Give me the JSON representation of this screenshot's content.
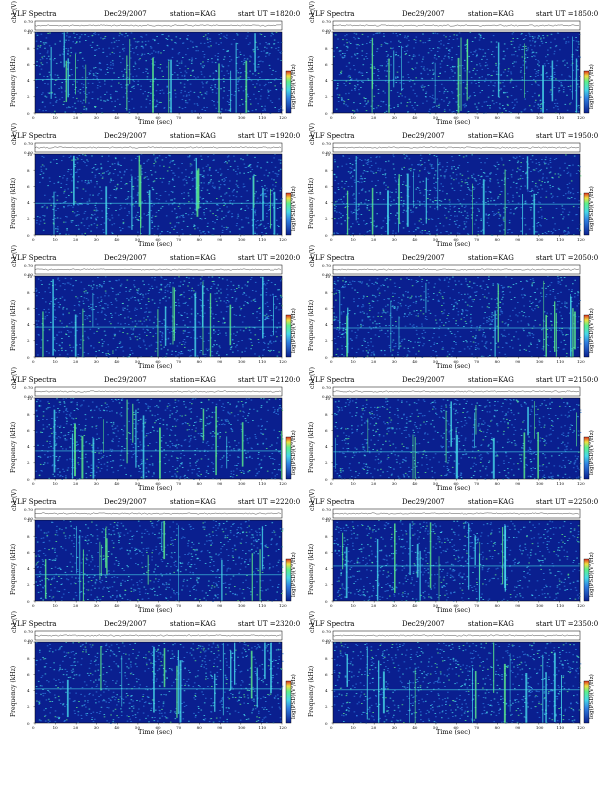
{
  "chart_data": [
    {
      "type": "heatmap",
      "title": "VLF Spectra",
      "date": "Dec29/2007",
      "station": "station=KAG",
      "start_label": "start  UT  =1820:0",
      "ylabel_top": "ch1 (V)",
      "ylabel": "Frequency  (kHz)",
      "xlabel": "Time  (sec)",
      "colorbar_label": "log(PSD)(V²/Hz)",
      "xlim": [
        0,
        120
      ],
      "ylim": [
        0,
        10
      ],
      "ch_ylim": [
        0.0,
        0.7
      ],
      "x_ticks": [
        "0",
        "10",
        "20",
        "30",
        "40",
        "50",
        "60",
        "70",
        "80",
        "90",
        "100",
        "110",
        "120"
      ],
      "y_ticks": [
        "0",
        "2",
        "4",
        "6",
        "8",
        "10"
      ],
      "ch_ticks": [
        "0.00",
        "0.70"
      ]
    },
    {
      "type": "heatmap",
      "title": "VLF Spectra",
      "date": "Dec29/2007",
      "station": "station=KAG",
      "start_label": "start  UT  =1850:0",
      "ylabel_top": "ch1 (V)",
      "ylabel": "Frequency  (kHz)",
      "xlabel": "Time  (sec)",
      "colorbar_label": "log(PSD)(V²/Hz)",
      "xlim": [
        0,
        120
      ],
      "ylim": [
        0,
        10
      ],
      "ch_ylim": [
        0.0,
        0.7
      ],
      "x_ticks": [
        "0",
        "10",
        "20",
        "30",
        "40",
        "50",
        "60",
        "70",
        "80",
        "90",
        "100",
        "110",
        "120"
      ],
      "y_ticks": [
        "0",
        "2",
        "4",
        "6",
        "8",
        "10"
      ],
      "ch_ticks": [
        "0.00",
        "0.70"
      ]
    },
    {
      "type": "heatmap",
      "title": "VLF Spectra",
      "date": "Dec29/2007",
      "station": "station=KAG",
      "start_label": "start  UT  =1920:0",
      "ylabel_top": "ch1 (V)",
      "ylabel": "Frequency  (kHz)",
      "xlabel": "Time  (sec)",
      "colorbar_label": "log(PSD)(V²/Hz)",
      "xlim": [
        0,
        120
      ],
      "ylim": [
        0,
        10
      ],
      "ch_ylim": [
        0.0,
        0.7
      ],
      "x_ticks": [
        "0",
        "10",
        "20",
        "30",
        "40",
        "50",
        "60",
        "70",
        "80",
        "90",
        "100",
        "110",
        "120"
      ],
      "y_ticks": [
        "0",
        "2",
        "4",
        "6",
        "8",
        "10"
      ],
      "ch_ticks": [
        "0.00",
        "0.70"
      ]
    },
    {
      "type": "heatmap",
      "title": "VLF Spectra",
      "date": "Dec29/2007",
      "station": "station=KAG",
      "start_label": "start  UT  =1950:0",
      "ylabel_top": "ch1 (V)",
      "ylabel": "Frequency  (kHz)",
      "xlabel": "Time  (sec)",
      "colorbar_label": "log(PSD)(V²/Hz)",
      "xlim": [
        0,
        120
      ],
      "ylim": [
        0,
        10
      ],
      "ch_ylim": [
        0.0,
        0.7
      ],
      "x_ticks": [
        "0",
        "10",
        "20",
        "30",
        "40",
        "50",
        "60",
        "70",
        "80",
        "90",
        "100",
        "110",
        "120"
      ],
      "y_ticks": [
        "0",
        "2",
        "4",
        "6",
        "8",
        "10"
      ],
      "ch_ticks": [
        "0.00",
        "0.70"
      ]
    },
    {
      "type": "heatmap",
      "title": "VLF Spectra",
      "date": "Dec29/2007",
      "station": "station=KAG",
      "start_label": "start  UT  =2020:0",
      "ylabel_top": "ch1 (V)",
      "ylabel": "Frequency  (kHz)",
      "xlabel": "Time  (sec)",
      "colorbar_label": "log(PSD)(V²/Hz)",
      "xlim": [
        0,
        120
      ],
      "ylim": [
        0,
        10
      ],
      "ch_ylim": [
        0.0,
        0.7
      ],
      "x_ticks": [
        "0",
        "10",
        "20",
        "30",
        "40",
        "50",
        "60",
        "70",
        "80",
        "90",
        "100",
        "110",
        "120"
      ],
      "y_ticks": [
        "0",
        "2",
        "4",
        "6",
        "8",
        "10"
      ],
      "ch_ticks": [
        "0.00",
        "0.70"
      ]
    },
    {
      "type": "heatmap",
      "title": "VLF Spectra",
      "date": "Dec29/2007",
      "station": "station=KAG",
      "start_label": "start  UT  =2050:0",
      "ylabel_top": "ch1 (V)",
      "ylabel": "Frequency  (kHz)",
      "xlabel": "Time  (sec)",
      "colorbar_label": "log(PSD)(V²/Hz)",
      "xlim": [
        0,
        120
      ],
      "ylim": [
        0,
        10
      ],
      "ch_ylim": [
        0.0,
        0.7
      ],
      "x_ticks": [
        "0",
        "10",
        "20",
        "30",
        "40",
        "50",
        "60",
        "70",
        "80",
        "90",
        "100",
        "110",
        "120"
      ],
      "y_ticks": [
        "0",
        "2",
        "4",
        "6",
        "8",
        "10"
      ],
      "ch_ticks": [
        "0.00",
        "0.70"
      ]
    },
    {
      "type": "heatmap",
      "title": "VLF Spectra",
      "date": "Dec29/2007",
      "station": "station=KAG",
      "start_label": "start  UT  =2120:0",
      "ylabel_top": "ch1 (V)",
      "ylabel": "Frequency  (kHz)",
      "xlabel": "Time  (sec)",
      "colorbar_label": "log(PSD)(V²/Hz)",
      "xlim": [
        0,
        120
      ],
      "ylim": [
        0,
        10
      ],
      "ch_ylim": [
        0.0,
        0.7
      ],
      "x_ticks": [
        "0",
        "10",
        "20",
        "30",
        "40",
        "50",
        "60",
        "70",
        "80",
        "90",
        "100",
        "110",
        "120"
      ],
      "y_ticks": [
        "0",
        "2",
        "4",
        "6",
        "8",
        "10"
      ],
      "ch_ticks": [
        "0.00",
        "0.70"
      ]
    },
    {
      "type": "heatmap",
      "title": "VLF Spectra",
      "date": "Dec29/2007",
      "station": "station=KAG",
      "start_label": "start  UT  =2150:0",
      "ylabel_top": "ch1 (V)",
      "ylabel": "Frequency  (kHz)",
      "xlabel": "Time  (sec)",
      "colorbar_label": "log(PSD)(V²/Hz)",
      "xlim": [
        0,
        120
      ],
      "ylim": [
        0,
        10
      ],
      "ch_ylim": [
        0.0,
        0.7
      ],
      "x_ticks": [
        "0",
        "10",
        "20",
        "30",
        "40",
        "50",
        "60",
        "70",
        "80",
        "90",
        "100",
        "110",
        "120"
      ],
      "y_ticks": [
        "0",
        "2",
        "4",
        "6",
        "8",
        "10"
      ],
      "ch_ticks": [
        "0.00",
        "0.70"
      ]
    },
    {
      "type": "heatmap",
      "title": "VLF Spectra",
      "date": "Dec29/2007",
      "station": "station=KAG",
      "start_label": "start  UT  =2220:0",
      "ylabel_top": "ch1 (V)",
      "ylabel": "Frequency  (kHz)",
      "xlabel": "Time  (sec)",
      "colorbar_label": "log(PSD)(V²/Hz)",
      "xlim": [
        0,
        120
      ],
      "ylim": [
        0,
        10
      ],
      "ch_ylim": [
        0.0,
        0.7
      ],
      "x_ticks": [
        "0",
        "10",
        "20",
        "30",
        "40",
        "50",
        "60",
        "70",
        "80",
        "90",
        "100",
        "110",
        "120"
      ],
      "y_ticks": [
        "0",
        "2",
        "4",
        "6",
        "8",
        "10"
      ],
      "ch_ticks": [
        "0.00",
        "0.70"
      ]
    },
    {
      "type": "heatmap",
      "title": "VLF Spectra",
      "date": "Dec29/2007",
      "station": "station=KAG",
      "start_label": "start  UT  =2250:0",
      "ylabel_top": "ch1 (V)",
      "ylabel": "Frequency  (kHz)",
      "xlabel": "Time  (sec)",
      "colorbar_label": "log(PSD)(V²/Hz)",
      "xlim": [
        0,
        120
      ],
      "ylim": [
        0,
        10
      ],
      "ch_ylim": [
        0.0,
        0.7
      ],
      "x_ticks": [
        "0",
        "10",
        "20",
        "30",
        "40",
        "50",
        "60",
        "70",
        "80",
        "90",
        "100",
        "110",
        "120"
      ],
      "y_ticks": [
        "0",
        "2",
        "4",
        "6",
        "8",
        "10"
      ],
      "ch_ticks": [
        "0.00",
        "0.70"
      ]
    },
    {
      "type": "heatmap",
      "title": "VLF Spectra",
      "date": "Dec29/2007",
      "station": "station=KAG",
      "start_label": "start  UT  =2320:0",
      "ylabel_top": "ch1 (V)",
      "ylabel": "Frequency  (kHz)",
      "xlabel": "Time  (sec)",
      "colorbar_label": "log(PSD)(V²/Hz)",
      "xlim": [
        0,
        120
      ],
      "ylim": [
        0,
        10
      ],
      "ch_ylim": [
        0.0,
        0.7
      ],
      "x_ticks": [
        "0",
        "10",
        "20",
        "30",
        "40",
        "50",
        "60",
        "70",
        "80",
        "90",
        "100",
        "110",
        "120"
      ],
      "y_ticks": [
        "0",
        "2",
        "4",
        "6",
        "8",
        "10"
      ],
      "ch_ticks": [
        "0.00",
        "0.70"
      ]
    },
    {
      "type": "heatmap",
      "title": "VLF Spectra",
      "date": "Dec29/2007",
      "station": "station=KAG",
      "start_label": "start  UT  =2350:0",
      "ylabel_top": "ch1 (V)",
      "ylabel": "Frequency  (kHz)",
      "xlabel": "Time  (sec)",
      "colorbar_label": "log(PSD)(V²/Hz)",
      "xlim": [
        0,
        120
      ],
      "ylim": [
        0,
        10
      ],
      "ch_ylim": [
        0.0,
        0.7
      ],
      "x_ticks": [
        "0",
        "10",
        "20",
        "30",
        "40",
        "50",
        "60",
        "70",
        "80",
        "90",
        "100",
        "110",
        "120"
      ],
      "y_ticks": [
        "0",
        "2",
        "4",
        "6",
        "8",
        "10"
      ],
      "ch_ticks": [
        "0.00",
        "0.70"
      ]
    }
  ],
  "colors": {
    "low": "#0a1f8f",
    "mid": "#2f7fe0",
    "cyan": "#46d8e8",
    "high": "#5cf08a",
    "peak": "#f0e040"
  }
}
